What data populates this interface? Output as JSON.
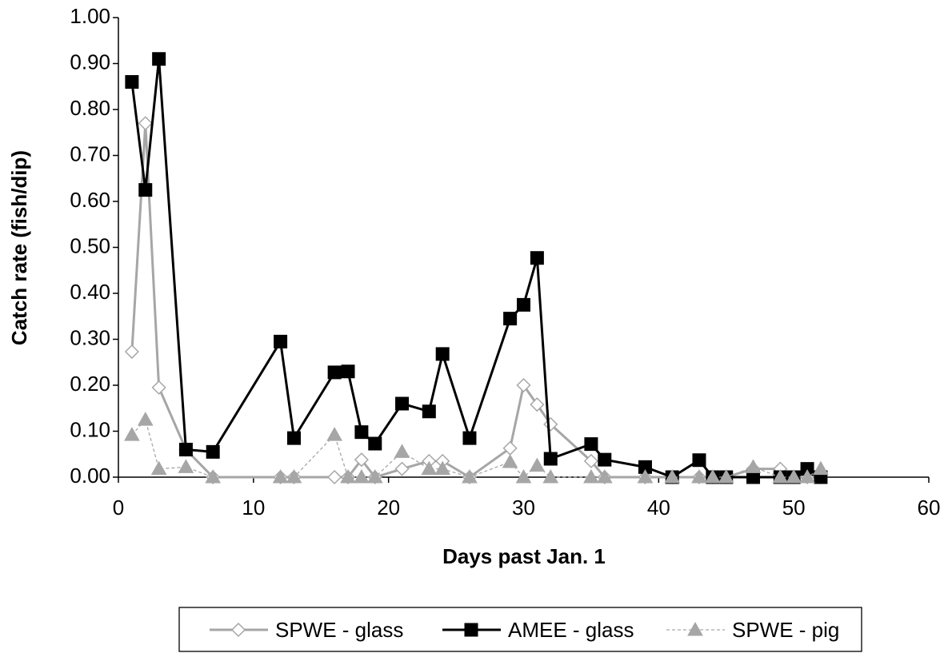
{
  "chart_data": {
    "type": "line",
    "x_label": "Days past Jan. 1",
    "y_label": "Catch rate (fish/dip)",
    "x": [
      1,
      2,
      3,
      5,
      7,
      12,
      13,
      16,
      17,
      18,
      19,
      21,
      23,
      24,
      26,
      29,
      30,
      31,
      32,
      35,
      36,
      39,
      41,
      43,
      44,
      45,
      47,
      49,
      50,
      51,
      52
    ],
    "series": [
      {
        "name": "SPWE - glass",
        "color": "#a6a6a6",
        "marker": "diamond",
        "line_style": "solid",
        "values": [
          0.273,
          0.77,
          0.195,
          0.06,
          0,
          0,
          0,
          0,
          0,
          0.038,
          0,
          0.018,
          0.035,
          0.035,
          0,
          0.063,
          0.2,
          0.158,
          0.115,
          0.035,
          0,
          0,
          0,
          0,
          0,
          0,
          0.018,
          0.018,
          0,
          0,
          0
        ]
      },
      {
        "name": "AMEE - glass",
        "color": "#000000",
        "marker": "square",
        "line_style": "solid",
        "values": [
          0.86,
          0.625,
          0.91,
          0.06,
          0.055,
          0.295,
          0.085,
          0.228,
          0.23,
          0.098,
          0.073,
          0.16,
          0.143,
          0.268,
          0.085,
          0.345,
          0.375,
          0.477,
          0.04,
          0.072,
          0.038,
          0.022,
          0,
          0.037,
          0,
          0,
          0,
          0,
          0,
          0.018,
          0
        ]
      },
      {
        "name": "SPWE - pig",
        "color": "#a6a6a6",
        "marker": "triangle",
        "line_style": "dashed",
        "values": [
          0.092,
          0.125,
          0.018,
          0.022,
          0,
          0,
          0,
          0.092,
          0,
          0,
          0,
          0.055,
          0.018,
          0.018,
          0,
          0.033,
          0,
          0.025,
          0,
          0,
          0,
          0,
          0,
          0,
          0,
          0,
          0.022,
          0,
          0,
          0,
          0.018
        ]
      }
    ],
    "xlim": [
      0,
      60
    ],
    "xticks": [
      0,
      10,
      20,
      30,
      40,
      50,
      60
    ],
    "ylim": [
      0,
      1
    ],
    "yticks": [
      {
        "value": 0,
        "label": "0.00"
      },
      {
        "value": 0.1,
        "label": "0.10"
      },
      {
        "value": 0.2,
        "label": "0.20"
      },
      {
        "value": 0.3,
        "label": "0.30"
      },
      {
        "value": 0.4,
        "label": "0.40"
      },
      {
        "value": 0.5,
        "label": "0.50"
      },
      {
        "value": 0.6,
        "label": "0.60"
      },
      {
        "value": 0.7,
        "label": "0.70"
      },
      {
        "value": 0.8,
        "label": "0.80"
      },
      {
        "value": 0.9,
        "label": "0.90"
      },
      {
        "value": 1,
        "label": "1.00"
      }
    ],
    "grid": false,
    "legend": "bottom"
  }
}
